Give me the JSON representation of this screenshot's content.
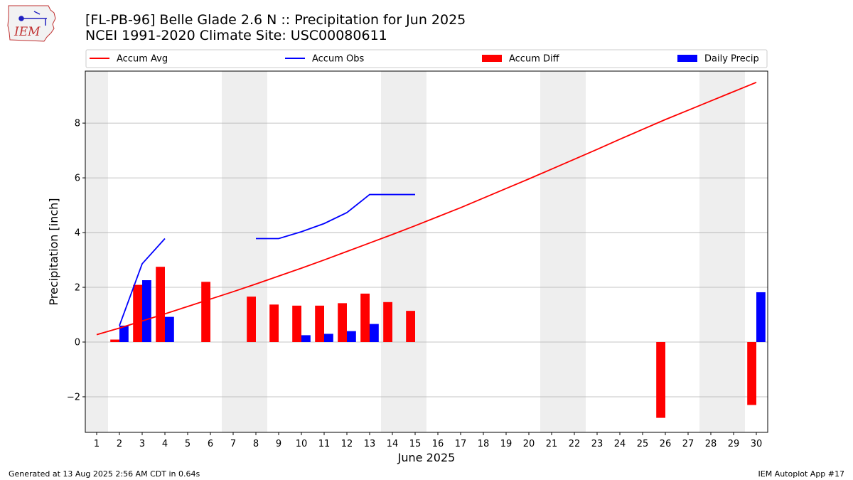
{
  "header": {
    "title_line1": "[FL-PB-96] Belle Glade 2.6 N :: Precipitation for Jun 2025",
    "title_line2": "NCEI 1991-2020 Climate Site: USC00080611",
    "logo_text": "IEM"
  },
  "footer": {
    "generated": "Generated at 13 Aug 2025 2:56 AM CDT in 0.64s",
    "app": "IEM Autoplot App #17"
  },
  "colors": {
    "accum_avg": "#ff0000",
    "accum_obs": "#0000ff",
    "accum_diff": "#ff0000",
    "daily_precip": "#0000ff",
    "weekend_shade": "#eeeeee",
    "grid": "#b0b0b0"
  },
  "chart_data": {
    "type": "bar",
    "xlabel": "June 2025",
    "ylabel": "Precipitation [inch]",
    "ylim": [
      -3.3,
      9.9
    ],
    "yticks": [
      -2,
      0,
      2,
      4,
      6,
      8
    ],
    "xlim": [
      0.5,
      30.5
    ],
    "x": [
      1,
      2,
      3,
      4,
      5,
      6,
      7,
      8,
      9,
      10,
      11,
      12,
      13,
      14,
      15,
      16,
      17,
      18,
      19,
      20,
      21,
      22,
      23,
      24,
      25,
      26,
      27,
      28,
      29,
      30
    ],
    "shaded_days": [
      [
        0.5,
        1.5
      ],
      [
        6.5,
        8.5
      ],
      [
        13.5,
        15.5
      ],
      [
        20.5,
        22.5
      ],
      [
        27.5,
        29.5
      ]
    ],
    "grid": "horizontal",
    "legend_position": "top",
    "legend": [
      "Accum Avg",
      "Accum Obs",
      "Accum Diff",
      "Daily Precip"
    ],
    "series": [
      {
        "name": "Accum Avg",
        "type": "line",
        "values": [
          0.27,
          0.51,
          0.77,
          1.03,
          1.3,
          1.57,
          1.84,
          2.12,
          2.41,
          2.7,
          3.0,
          3.31,
          3.62,
          3.93,
          4.25,
          4.58,
          4.91,
          5.26,
          5.61,
          5.96,
          6.32,
          6.68,
          7.04,
          7.41,
          7.77,
          8.13,
          8.47,
          8.81,
          9.15,
          9.49
        ]
      },
      {
        "name": "Accum Obs",
        "type": "line",
        "values": [
          null,
          0.6,
          2.86,
          3.78,
          null,
          null,
          null,
          3.78,
          3.78,
          4.03,
          4.33,
          4.73,
          5.39,
          5.39,
          5.39,
          null,
          null,
          null,
          null,
          null,
          null,
          null,
          null,
          null,
          null,
          null,
          null,
          null,
          null,
          null
        ]
      },
      {
        "name": "Accum Diff",
        "type": "bar",
        "values": [
          null,
          0.09,
          2.09,
          2.75,
          null,
          2.2,
          null,
          1.66,
          1.37,
          1.33,
          1.33,
          1.42,
          1.77,
          1.46,
          1.14,
          null,
          null,
          null,
          null,
          null,
          null,
          null,
          null,
          null,
          null,
          -2.77,
          null,
          null,
          null,
          -2.3
        ]
      },
      {
        "name": "Daily Precip",
        "type": "bar",
        "values": [
          null,
          0.6,
          2.26,
          0.92,
          null,
          null,
          null,
          null,
          null,
          0.25,
          0.3,
          0.4,
          0.66,
          null,
          null,
          null,
          null,
          null,
          null,
          null,
          null,
          null,
          null,
          null,
          null,
          null,
          null,
          null,
          null,
          1.82
        ]
      }
    ]
  }
}
